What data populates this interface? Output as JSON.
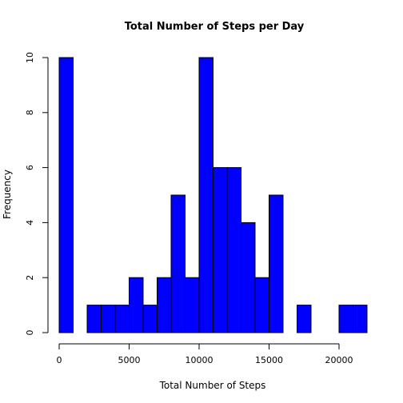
{
  "chart_data": {
    "type": "bar",
    "title": "Total Number of Steps per Day",
    "xlabel": "Total Number of Steps",
    "ylabel": "Frequency",
    "bar_color": "#0000FF",
    "xlim": [
      0,
      22000
    ],
    "ylim": [
      0,
      10
    ],
    "bin_width": 1000,
    "bin_starts": [
      0,
      1000,
      2000,
      3000,
      4000,
      5000,
      6000,
      7000,
      8000,
      9000,
      10000,
      11000,
      12000,
      13000,
      14000,
      15000,
      16000,
      17000,
      18000,
      19000,
      20000,
      21000
    ],
    "values": [
      10,
      0,
      1,
      1,
      1,
      2,
      1,
      2,
      5,
      2,
      10,
      6,
      6,
      4,
      2,
      5,
      0,
      1,
      0,
      0,
      1,
      1
    ],
    "x_ticks": [
      0,
      5000,
      10000,
      15000,
      20000
    ],
    "y_ticks": [
      0,
      2,
      4,
      6,
      8,
      10
    ]
  }
}
